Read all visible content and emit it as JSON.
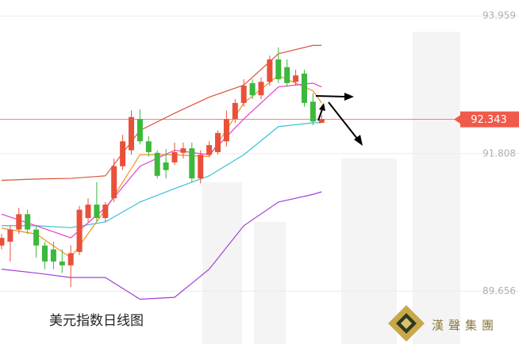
{
  "chart_data": {
    "type": "candlestick",
    "title": "美元指数日线图",
    "brand": "漢聲集團",
    "categories": [
      null,
      null,
      null,
      null,
      null,
      null,
      null,
      null,
      null,
      null,
      null,
      null,
      null,
      null,
      null,
      null,
      null,
      null,
      null,
      null,
      null,
      null,
      null,
      null,
      null,
      null,
      null,
      null,
      null,
      null,
      null,
      null,
      null,
      null,
      null,
      null,
      null,
      null
    ],
    "open": [
      90.37,
      90.43,
      90.62,
      90.86,
      90.62,
      90.37,
      90.31,
      90.12,
      90.06,
      90.27,
      90.8,
      91.01,
      90.8,
      91.11,
      91.61,
      91.86,
      92.35,
      92.0,
      91.82,
      91.67,
      91.67,
      91.82,
      91.89,
      91.42,
      91.79,
      91.83,
      92.0,
      92.35,
      92.6,
      92.91,
      92.72,
      92.93,
      93.28,
      93.16,
      92.93,
      93.06,
      92.62,
      92.29
    ],
    "high": [
      90.55,
      90.68,
      90.96,
      90.93,
      90.68,
      90.43,
      90.43,
      90.31,
      90.37,
      90.99,
      91.11,
      91.36,
      91.05,
      91.73,
      92.1,
      92.48,
      92.5,
      92.08,
      91.86,
      91.88,
      91.98,
      91.98,
      91.98,
      91.86,
      92.0,
      92.17,
      92.48,
      92.66,
      92.97,
      92.97,
      93.0,
      93.34,
      93.47,
      93.28,
      93.12,
      93.12,
      92.75,
      92.41
    ],
    "low": [
      90.31,
      90.12,
      90.55,
      90.55,
      90.18,
      90.0,
      90.0,
      89.94,
      89.72,
      90.22,
      90.74,
      90.74,
      90.74,
      91.05,
      91.55,
      91.79,
      91.95,
      91.76,
      91.42,
      91.42,
      91.63,
      91.73,
      91.36,
      91.34,
      91.76,
      91.79,
      91.92,
      92.29,
      92.54,
      92.66,
      92.66,
      92.87,
      92.91,
      92.85,
      92.87,
      92.54,
      92.25,
      92.29
    ],
    "close": [
      90.49,
      90.62,
      90.86,
      90.62,
      90.37,
      90.12,
      90.12,
      90.06,
      90.25,
      90.93,
      91.01,
      90.8,
      91.01,
      91.61,
      92.0,
      92.38,
      92.0,
      91.83,
      91.46,
      91.55,
      91.83,
      91.89,
      91.42,
      91.79,
      91.94,
      92.13,
      92.35,
      92.6,
      92.87,
      92.72,
      92.93,
      93.28,
      92.97,
      92.91,
      93.03,
      92.6,
      92.31,
      92.35
    ],
    "up_color": "#e8503a",
    "down_color": "#3cb83c",
    "lines": [
      {
        "color": "#d9533a",
        "x": [
          0,
          4,
          8,
          12,
          16,
          20,
          24,
          28,
          32,
          36,
          37
        ],
        "values": [
          91.39,
          91.41,
          91.42,
          91.46,
          92.17,
          92.44,
          92.69,
          92.88,
          93.37,
          93.5,
          93.5
        ]
      },
      {
        "color": "#3ebfd8",
        "x": [
          0,
          4,
          8,
          12,
          16,
          20,
          24,
          28,
          32,
          36,
          37
        ],
        "values": [
          90.68,
          90.68,
          90.65,
          90.74,
          91.05,
          91.26,
          91.46,
          91.79,
          92.23,
          92.29,
          92.29
        ]
      },
      {
        "color": "#a040d8",
        "x": [
          0,
          4,
          8,
          12,
          16,
          20,
          24,
          28,
          32,
          36,
          37
        ],
        "values": [
          90.0,
          89.94,
          89.87,
          89.87,
          89.53,
          89.56,
          90.0,
          90.68,
          91.05,
          91.17,
          91.21
        ]
      },
      {
        "color": "#f0901e",
        "x": [
          0,
          4,
          8,
          12,
          16,
          20,
          24,
          28,
          32,
          36,
          37
        ],
        "values": [
          90.64,
          90.55,
          90.18,
          90.93,
          91.79,
          91.79,
          91.76,
          92.6,
          93.03,
          92.79,
          92.6
        ]
      },
      {
        "color": "#e040d0",
        "x": [
          0,
          4,
          8,
          12,
          16,
          20,
          24,
          28,
          32,
          36,
          37
        ],
        "values": [
          90.86,
          90.68,
          90.49,
          90.96,
          91.61,
          91.86,
          91.79,
          92.35,
          92.85,
          92.91,
          92.85
        ]
      }
    ],
    "last_price": 92.343,
    "last_price_color": "#f05a4a",
    "ylim": [
      88.83,
      94.21
    ],
    "yticks": [
      93.959,
      91.808,
      89.656
    ],
    "grid": true
  }
}
